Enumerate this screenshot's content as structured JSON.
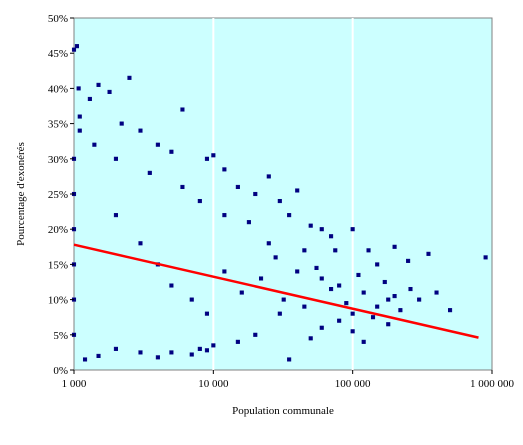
{
  "chart_data": {
    "type": "scatter",
    "title": "",
    "xlabel": "Population communale",
    "ylabel": "Pourcentage d'exonérés",
    "x_scale": "log",
    "xlim": [
      1000,
      1000000
    ],
    "ylim": [
      0,
      50
    ],
    "x_ticks": [
      {
        "value": 1000,
        "label": "1 000"
      },
      {
        "value": 10000,
        "label": "10 000"
      },
      {
        "value": 100000,
        "label": "100 000"
      },
      {
        "value": 1000000,
        "label": "1 000 000"
      }
    ],
    "y_ticks": [
      {
        "value": 0,
        "label": "0%"
      },
      {
        "value": 5,
        "label": "5%"
      },
      {
        "value": 10,
        "label": "10%"
      },
      {
        "value": 15,
        "label": "15%"
      },
      {
        "value": 20,
        "label": "20%"
      },
      {
        "value": 25,
        "label": "25%"
      },
      {
        "value": 30,
        "label": "30%"
      },
      {
        "value": 35,
        "label": "35%"
      },
      {
        "value": 40,
        "label": "40%"
      },
      {
        "value": 45,
        "label": "45%"
      },
      {
        "value": 50,
        "label": "50%"
      }
    ],
    "grid": "vertical",
    "legend": "none",
    "colors": {
      "plot_background": "#ccffff",
      "points": "#000080",
      "trend": "#ff0000",
      "grid": "#ffffff"
    },
    "series": [
      {
        "kind": "points",
        "values": [
          [
            1000,
            45.5
          ],
          [
            1050,
            46.0
          ],
          [
            1080,
            40.0
          ],
          [
            1500,
            40.5
          ],
          [
            2500,
            41.5
          ],
          [
            1300,
            38.5
          ],
          [
            1800,
            39.5
          ],
          [
            1100,
            36.0
          ],
          [
            2200,
            35.0
          ],
          [
            3000,
            34.0
          ],
          [
            6000,
            37.0
          ],
          [
            4000,
            32.0
          ],
          [
            5000,
            31.0
          ],
          [
            9000,
            30.0
          ],
          [
            12000,
            28.5
          ],
          [
            10000,
            30.5
          ],
          [
            15000,
            26.0
          ],
          [
            20000,
            25.0
          ],
          [
            25000,
            27.5
          ],
          [
            30000,
            24.0
          ],
          [
            40000,
            25.5
          ],
          [
            35000,
            22.0
          ],
          [
            50000,
            20.5
          ],
          [
            60000,
            20.0
          ],
          [
            70000,
            19.0
          ],
          [
            100000,
            20.0
          ],
          [
            130000,
            17.0
          ],
          [
            150000,
            15.0
          ],
          [
            200000,
            17.5
          ],
          [
            250000,
            15.5
          ],
          [
            350000,
            16.5
          ],
          [
            900000,
            16.0
          ],
          [
            400000,
            11.0
          ],
          [
            300000,
            10.0
          ],
          [
            200000,
            10.5
          ],
          [
            150000,
            9.0
          ],
          [
            100000,
            8.0
          ],
          [
            80000,
            7.0
          ],
          [
            60000,
            6.0
          ],
          [
            50000,
            4.5
          ],
          [
            100000,
            5.5
          ],
          [
            180000,
            10.0
          ],
          [
            220000,
            8.5
          ],
          [
            500000,
            8.5
          ],
          [
            30000,
            8.0
          ],
          [
            20000,
            5.0
          ],
          [
            15000,
            4.0
          ],
          [
            10000,
            3.5
          ],
          [
            8000,
            3.0
          ],
          [
            5000,
            2.5
          ],
          [
            3000,
            2.5
          ],
          [
            2000,
            3.0
          ],
          [
            1500,
            2.0
          ],
          [
            1200,
            1.5
          ],
          [
            4000,
            1.8
          ],
          [
            7000,
            2.2
          ],
          [
            9000,
            2.8
          ],
          [
            35000,
            1.5
          ],
          [
            40000,
            14.0
          ],
          [
            60000,
            13.0
          ],
          [
            80000,
            12.0
          ],
          [
            120000,
            11.0
          ],
          [
            45000,
            17.0
          ],
          [
            25000,
            18.0
          ],
          [
            18000,
            21.0
          ],
          [
            12000,
            22.0
          ],
          [
            8000,
            24.0
          ],
          [
            6000,
            26.0
          ],
          [
            3500,
            28.0
          ],
          [
            2000,
            30.0
          ],
          [
            1400,
            32.0
          ],
          [
            1100,
            34.0
          ],
          [
            1000,
            30.0
          ],
          [
            1000,
            25.0
          ],
          [
            1000,
            20.0
          ],
          [
            1000,
            15.0
          ],
          [
            1000,
            10.0
          ],
          [
            1000,
            5.0
          ],
          [
            2000,
            22.0
          ],
          [
            3000,
            18.0
          ],
          [
            4000,
            15.0
          ],
          [
            5000,
            12.0
          ],
          [
            7000,
            10.0
          ],
          [
            9000,
            8.0
          ],
          [
            12000,
            14.0
          ],
          [
            16000,
            11.0
          ],
          [
            22000,
            13.0
          ],
          [
            28000,
            16.0
          ],
          [
            32000,
            10.0
          ],
          [
            45000,
            9.0
          ],
          [
            55000,
            14.5
          ],
          [
            70000,
            11.5
          ],
          [
            90000,
            9.5
          ],
          [
            110000,
            13.5
          ],
          [
            140000,
            7.5
          ],
          [
            170000,
            12.5
          ],
          [
            260000,
            11.5
          ],
          [
            180000,
            6.5
          ],
          [
            120000,
            4.0
          ],
          [
            75000,
            17.0
          ]
        ]
      },
      {
        "kind": "trend_line",
        "values": [
          [
            1000,
            17.8
          ],
          [
            800000,
            4.6
          ]
        ]
      }
    ]
  }
}
